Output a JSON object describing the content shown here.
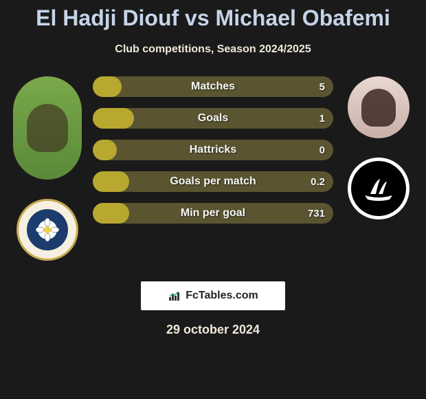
{
  "title": "El Hadji Diouf vs Michael Obafemi",
  "subtitle": "Club competitions, Season 2024/2025",
  "date": "29 october 2024",
  "fctables_label": "FcTables.com",
  "colors": {
    "background": "#1a1a1a",
    "title": "#c5d4e8",
    "subtitle": "#f0e8da",
    "bar_fill": "#b8a830",
    "bar_track": "#5a5530",
    "text_on_bar": "#f5f5f5"
  },
  "stats": [
    {
      "label": "Matches",
      "value": "5",
      "fill_pct": 12
    },
    {
      "label": "Goals",
      "value": "1",
      "fill_pct": 17
    },
    {
      "label": "Hattricks",
      "value": "0",
      "fill_pct": 10
    },
    {
      "label": "Goals per match",
      "value": "0.2",
      "fill_pct": 15
    },
    {
      "label": "Min per goal",
      "value": "731",
      "fill_pct": 15
    }
  ],
  "player_left": {
    "name": "El Hadji Diouf",
    "club": "Leeds"
  },
  "player_right": {
    "name": "Michael Obafemi",
    "club": "Plymouth"
  }
}
